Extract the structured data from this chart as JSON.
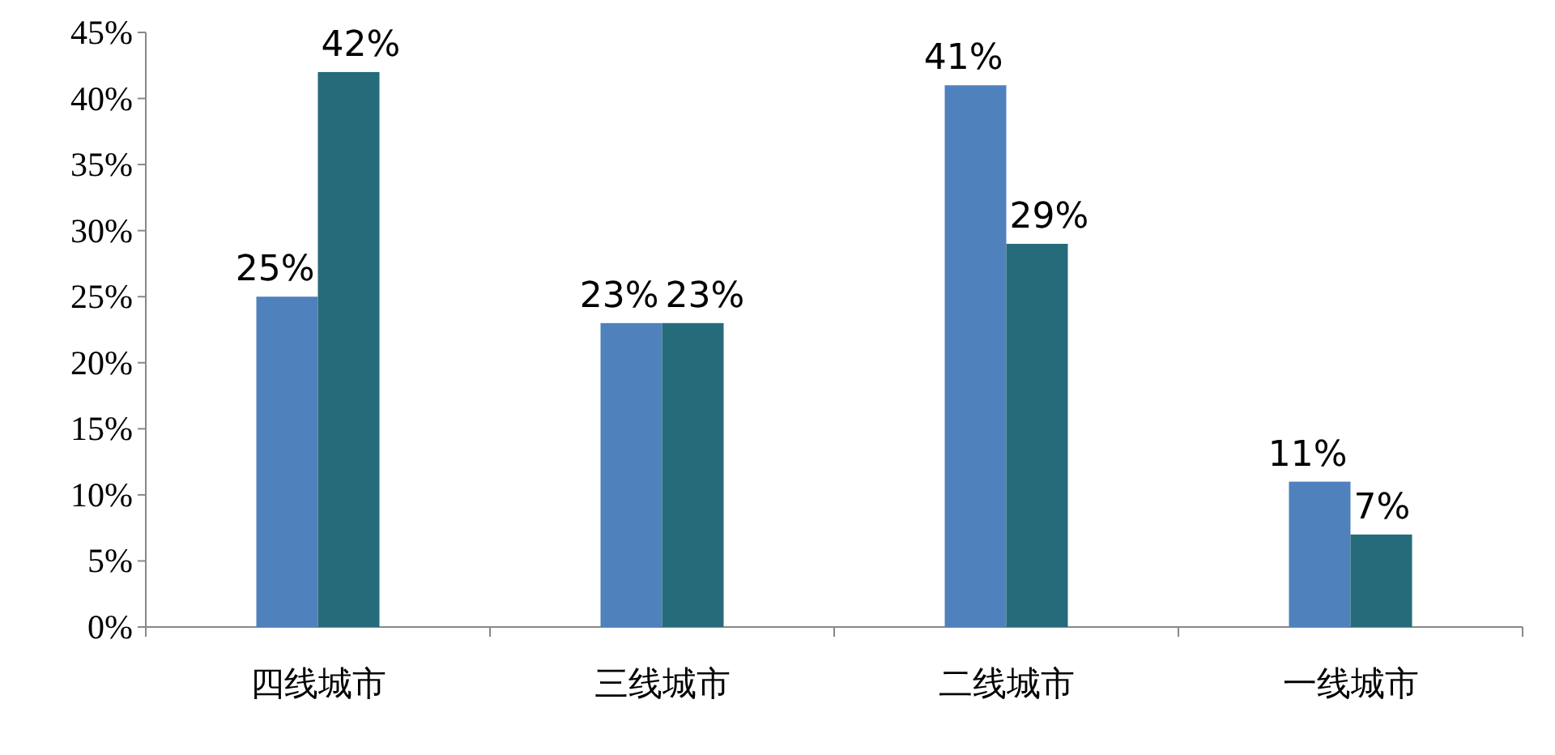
{
  "chart_data": {
    "type": "bar",
    "categories": [
      "四线城市",
      "三线城市",
      "二线城市",
      "一线城市"
    ],
    "series": [
      {
        "color": "#4f81bd",
        "values": [
          25,
          23,
          41,
          11
        ],
        "value_labels": [
          "25%",
          "23%",
          "41%",
          "11%"
        ]
      },
      {
        "color": "#256b7a",
        "values": [
          42,
          23,
          29,
          7
        ],
        "value_labels": [
          "42%",
          "23%",
          "29%",
          "7%"
        ]
      }
    ],
    "ylim": [
      0,
      45
    ],
    "yticks": [
      {
        "value": 0,
        "label": "0%"
      },
      {
        "value": 5,
        "label": "5%"
      },
      {
        "value": 10,
        "label": "10%"
      },
      {
        "value": 15,
        "label": "15%"
      },
      {
        "value": 20,
        "label": "20%"
      },
      {
        "value": 25,
        "label": "25%"
      },
      {
        "value": 30,
        "label": "30%"
      },
      {
        "value": 35,
        "label": "35%"
      },
      {
        "value": 40,
        "label": "40%"
      },
      {
        "value": 45,
        "label": "45%"
      }
    ],
    "grid": false,
    "legend": false
  }
}
